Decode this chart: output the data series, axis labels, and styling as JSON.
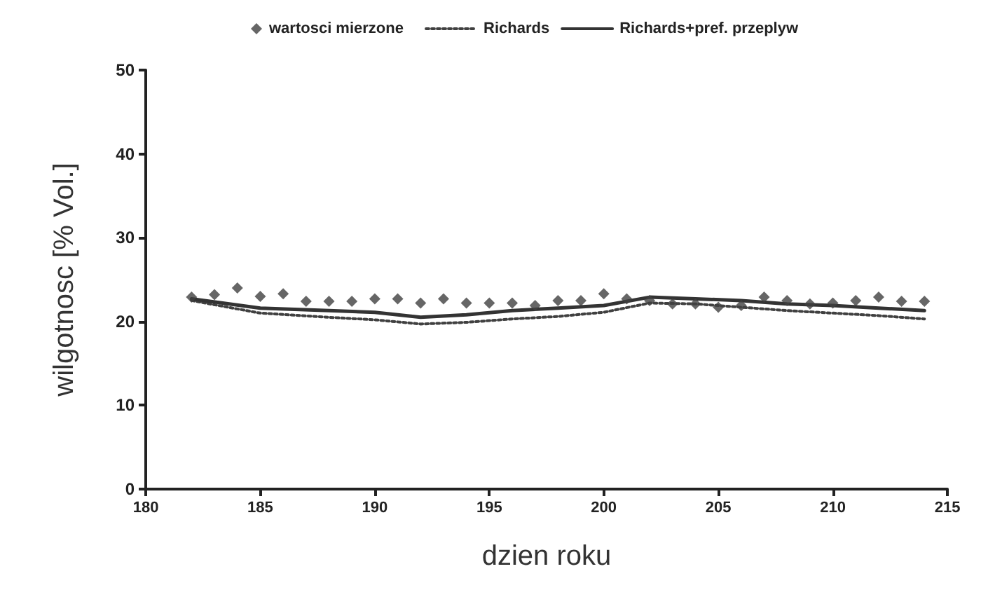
{
  "chart_data": {
    "type": "line",
    "xlabel": "dzien roku",
    "ylabel": "wilgotnosc [% Vol.]",
    "xlim": [
      180,
      215
    ],
    "xticks": [
      180,
      185,
      190,
      195,
      200,
      205,
      210,
      215
    ],
    "ylim": [
      0,
      50
    ],
    "yticks": [
      0,
      10,
      20,
      30,
      40,
      50
    ],
    "grid": false,
    "legend": "top",
    "series": [
      {
        "name": "wartosci mierzone",
        "type": "scatter",
        "marker": "diamond",
        "color": "#404040",
        "x": [
          182,
          183,
          184,
          185,
          186,
          187,
          188,
          189,
          190,
          191,
          192,
          193,
          194,
          195,
          196,
          197,
          198,
          199,
          200,
          201,
          202,
          203,
          204,
          205,
          206,
          207,
          208,
          209,
          210,
          211,
          212,
          213,
          214
        ],
        "values": [
          22.9,
          23.2,
          24.0,
          23.0,
          23.3,
          22.4,
          22.4,
          22.4,
          22.7,
          22.7,
          22.2,
          22.7,
          22.2,
          22.2,
          22.2,
          21.9,
          22.5,
          22.5,
          23.3,
          22.7,
          22.5,
          22.1,
          22.1,
          21.7,
          21.9,
          22.9,
          22.5,
          22.1,
          22.2,
          22.5,
          22.9,
          22.4,
          22.4
        ]
      },
      {
        "name": "Richards",
        "line_style": "dotted",
        "marker": "none",
        "color": "#404040",
        "x": [
          182,
          185,
          188,
          190,
          192,
          194,
          196,
          198,
          200,
          202,
          204,
          206,
          208,
          210,
          212,
          214
        ],
        "values": [
          22.5,
          21.0,
          20.5,
          20.2,
          19.7,
          19.9,
          20.3,
          20.6,
          21.1,
          22.2,
          22.1,
          21.7,
          21.3,
          21.0,
          20.7,
          20.3
        ]
      },
      {
        "name": "Richards+pref. przeplyw",
        "line_style": "solid",
        "marker": "none",
        "color": "#333333",
        "x": [
          182,
          185,
          188,
          190,
          192,
          194,
          196,
          198,
          200,
          202,
          204,
          206,
          208,
          210,
          212,
          214
        ],
        "values": [
          22.7,
          21.6,
          21.3,
          21.1,
          20.5,
          20.8,
          21.3,
          21.6,
          21.9,
          22.9,
          22.7,
          22.5,
          22.1,
          21.9,
          21.6,
          21.3
        ]
      }
    ]
  }
}
